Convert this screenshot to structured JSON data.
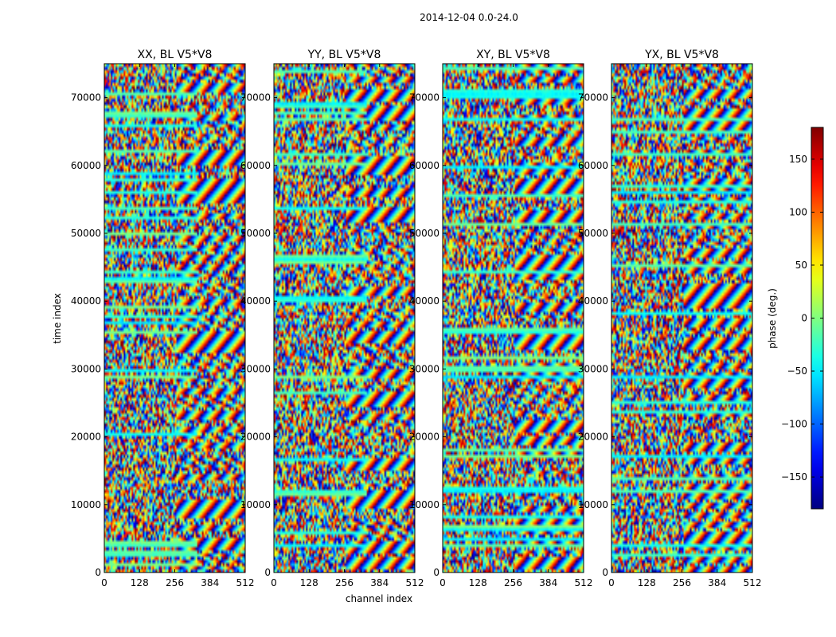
{
  "suptitle": "2014-12-04 0.0-24.0",
  "chart_data": {
    "type": "heatmap",
    "colormap": "jet",
    "xlabel": "channel index",
    "ylabel": "time index",
    "xlim": [
      0,
      512
    ],
    "ylim": [
      0,
      75000
    ],
    "xticks": [
      0,
      128,
      256,
      384,
      512
    ],
    "yticks": [
      0,
      10000,
      20000,
      30000,
      40000,
      50000,
      60000,
      70000
    ],
    "panels": [
      {
        "title": "XX, BL V5*V8"
      },
      {
        "title": "YY, BL V5*V8"
      },
      {
        "title": "XY, BL V5*V8"
      },
      {
        "title": "YX, BL V5*V8"
      }
    ],
    "colorbar": {
      "label": "phase (deg.)",
      "range": [
        -180,
        180
      ],
      "ticks": [
        -150,
        -100,
        -50,
        0,
        50,
        100,
        150
      ]
    }
  }
}
